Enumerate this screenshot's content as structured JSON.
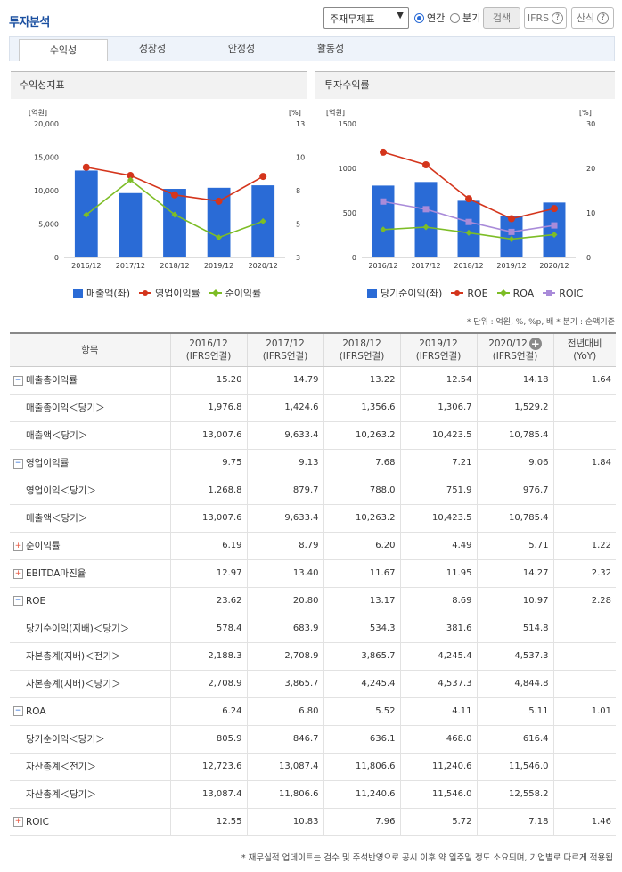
{
  "header": {
    "title": "투자분석",
    "select_value": "주재무제표",
    "radio_annual": "연간",
    "radio_quarter": "분기",
    "search_label": "검색",
    "ifrs_label": "IFRS",
    "formula_label": "산식"
  },
  "tabs": [
    "수익성",
    "성장성",
    "안정성",
    "활동성"
  ],
  "panels": {
    "left_title": "수익성지표",
    "right_title": "투자수익률"
  },
  "chart_data": [
    {
      "type": "bar+line",
      "title": "수익성지표",
      "categories": [
        "2016/12",
        "2017/12",
        "2018/12",
        "2019/12",
        "2020/12"
      ],
      "left_unit": "[억원]",
      "right_unit": "[%]",
      "left_ticks": [
        "20,000",
        "15,000",
        "10,000",
        "5,000",
        "0"
      ],
      "right_ticks": [
        "13",
        "10",
        "8",
        "5",
        "3"
      ],
      "ylim_left": [
        0,
        20000
      ],
      "ylim_right": [
        3,
        13
      ],
      "series": [
        {
          "name": "매출액(좌)",
          "type": "bar",
          "color": "#2a6bd6",
          "values": [
            13007.6,
            9633.4,
            10263.2,
            10423.5,
            10785.4
          ]
        },
        {
          "name": "영업이익률",
          "type": "line",
          "color": "#d4351c",
          "values": [
            9.75,
            9.13,
            7.68,
            7.21,
            9.06
          ]
        },
        {
          "name": "순이익률",
          "type": "line",
          "color": "#7dbd26",
          "values": [
            6.19,
            8.79,
            6.2,
            4.49,
            5.71
          ]
        }
      ]
    },
    {
      "type": "bar+line",
      "title": "투자수익률",
      "categories": [
        "2016/12",
        "2017/12",
        "2018/12",
        "2019/12",
        "2020/12"
      ],
      "left_unit": "[억원]",
      "right_unit": "[%]",
      "left_ticks": [
        "1500",
        "1000",
        "500",
        "0"
      ],
      "right_ticks": [
        "30",
        "20",
        "10",
        "0"
      ],
      "ylim_left": [
        0,
        1500
      ],
      "ylim_right": [
        0,
        30
      ],
      "series": [
        {
          "name": "당기순이익(좌)",
          "type": "bar",
          "color": "#2a6bd6",
          "values": [
            805.9,
            846.7,
            636.1,
            468.0,
            616.4
          ]
        },
        {
          "name": "ROE",
          "type": "line",
          "color": "#d4351c",
          "values": [
            23.62,
            20.8,
            13.17,
            8.69,
            10.97
          ]
        },
        {
          "name": "ROA",
          "type": "line",
          "color": "#7dbd26",
          "values": [
            6.24,
            6.8,
            5.52,
            4.11,
            5.11
          ]
        },
        {
          "name": "ROIC",
          "type": "line",
          "color": "#a98bd9",
          "values": [
            12.55,
            10.83,
            7.96,
            5.72,
            7.18
          ]
        }
      ]
    }
  ],
  "unit_note": "* 단위 : 억원, %, %p, 배   * 분기 : 순액기준",
  "table": {
    "headers": [
      {
        "l1": "항목",
        "l2": ""
      },
      {
        "l1": "2016/12",
        "l2": "(IFRS연결)"
      },
      {
        "l1": "2017/12",
        "l2": "(IFRS연결)"
      },
      {
        "l1": "2018/12",
        "l2": "(IFRS연결)"
      },
      {
        "l1": "2019/12",
        "l2": "(IFRS연결)"
      },
      {
        "l1": "2020/12",
        "l2": "(IFRS연결)"
      },
      {
        "l1": "전년대비",
        "l2": "(YoY)"
      }
    ],
    "rows": [
      {
        "label": "매출총이익률",
        "kind": "minus",
        "cells": [
          "15.20",
          "14.79",
          "13.22",
          "12.54",
          "14.18",
          "1.64"
        ]
      },
      {
        "label": "매출총이익＜당기＞",
        "kind": "sub",
        "cells": [
          "1,976.8",
          "1,424.6",
          "1,356.6",
          "1,306.7",
          "1,529.2",
          ""
        ]
      },
      {
        "label": "매출액＜당기＞",
        "kind": "sub",
        "cells": [
          "13,007.6",
          "9,633.4",
          "10,263.2",
          "10,423.5",
          "10,785.4",
          ""
        ]
      },
      {
        "label": "영업이익률",
        "kind": "minus",
        "cells": [
          "9.75",
          "9.13",
          "7.68",
          "7.21",
          "9.06",
          "1.84"
        ]
      },
      {
        "label": "영업이익＜당기＞",
        "kind": "sub",
        "cells": [
          "1,268.8",
          "879.7",
          "788.0",
          "751.9",
          "976.7",
          ""
        ]
      },
      {
        "label": "매출액＜당기＞",
        "kind": "sub",
        "cells": [
          "13,007.6",
          "9,633.4",
          "10,263.2",
          "10,423.5",
          "10,785.4",
          ""
        ]
      },
      {
        "label": "순이익률",
        "kind": "plus",
        "cells": [
          "6.19",
          "8.79",
          "6.20",
          "4.49",
          "5.71",
          "1.22"
        ]
      },
      {
        "label": "EBITDA마진율",
        "kind": "plus",
        "cells": [
          "12.97",
          "13.40",
          "11.67",
          "11.95",
          "14.27",
          "2.32"
        ]
      },
      {
        "label": "ROE",
        "kind": "minus",
        "cells": [
          "23.62",
          "20.80",
          "13.17",
          "8.69",
          "10.97",
          "2.28"
        ]
      },
      {
        "label": "당기순이익(지배)＜당기＞",
        "kind": "sub",
        "cells": [
          "578.4",
          "683.9",
          "534.3",
          "381.6",
          "514.8",
          ""
        ]
      },
      {
        "label": "자본총계(지배)＜전기＞",
        "kind": "sub",
        "cells": [
          "2,188.3",
          "2,708.9",
          "3,865.7",
          "4,245.4",
          "4,537.3",
          ""
        ]
      },
      {
        "label": "자본총계(지배)＜당기＞",
        "kind": "sub",
        "cells": [
          "2,708.9",
          "3,865.7",
          "4,245.4",
          "4,537.3",
          "4,844.8",
          ""
        ]
      },
      {
        "label": "ROA",
        "kind": "minus",
        "cells": [
          "6.24",
          "6.80",
          "5.52",
          "4.11",
          "5.11",
          "1.01"
        ]
      },
      {
        "label": "당기순이익＜당기＞",
        "kind": "sub",
        "cells": [
          "805.9",
          "846.7",
          "636.1",
          "468.0",
          "616.4",
          ""
        ]
      },
      {
        "label": "자산총계＜전기＞",
        "kind": "sub",
        "cells": [
          "12,723.6",
          "13,087.4",
          "11,806.6",
          "11,240.6",
          "11,546.0",
          ""
        ]
      },
      {
        "label": "자산총계＜당기＞",
        "kind": "sub",
        "cells": [
          "13,087.4",
          "11,806.6",
          "11,240.6",
          "11,546.0",
          "12,558.2",
          ""
        ]
      },
      {
        "label": "ROIC",
        "kind": "plus",
        "cells": [
          "12.55",
          "10.83",
          "7.96",
          "5.72",
          "7.18",
          "1.46"
        ]
      }
    ]
  },
  "footer": "* 재무실적 업데이트는 검수 및 주석반영으로 공시 이후 약 일주일 정도 소요되며, 기업별로 다르게 적용됩"
}
